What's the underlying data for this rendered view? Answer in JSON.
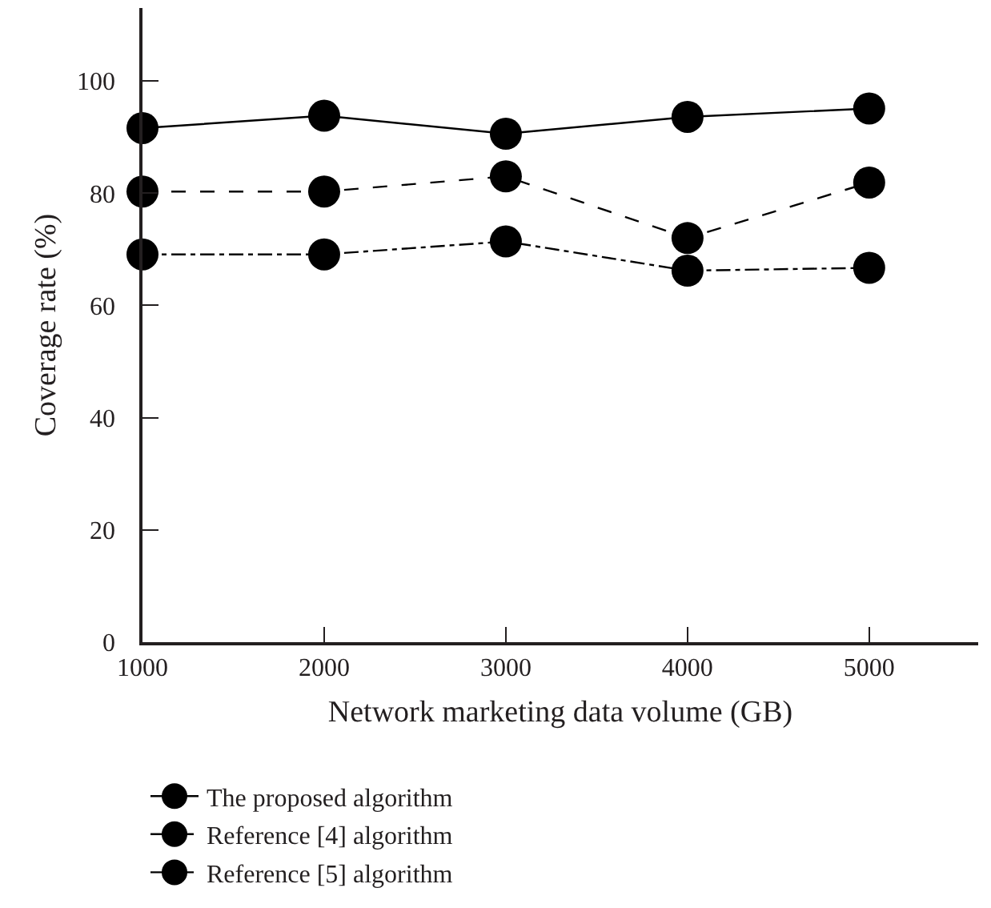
{
  "chart_data": {
    "type": "line",
    "xlabel": "Network marketing data volume (GB)",
    "ylabel": "Coverage rate (%)",
    "x": [
      1000,
      2000,
      3000,
      4000,
      5000
    ],
    "series": [
      {
        "name": "The proposed algorithm",
        "color": "#000000",
        "line_style": "solid",
        "values": [
          91.6,
          93.8,
          90.6,
          93.6,
          95.1
        ]
      },
      {
        "name": "Reference [4] algorithm",
        "color": "#000000",
        "line_style": "dashed",
        "values": [
          80.3,
          80.3,
          83.0,
          72.0,
          81.9
        ]
      },
      {
        "name": "Reference [5] algorithm",
        "color": "#000000",
        "line_style": "dashdot",
        "values": [
          69.1,
          69.1,
          71.4,
          66.2,
          66.7
        ]
      }
    ],
    "xlim": [
      1000,
      5600
    ],
    "ylim": [
      0,
      113
    ],
    "xticks": [
      1000,
      2000,
      3000,
      4000,
      5000
    ],
    "yticks": [
      0,
      20,
      40,
      60,
      80,
      100
    ],
    "legend": "bottom left",
    "marker": "circle"
  }
}
